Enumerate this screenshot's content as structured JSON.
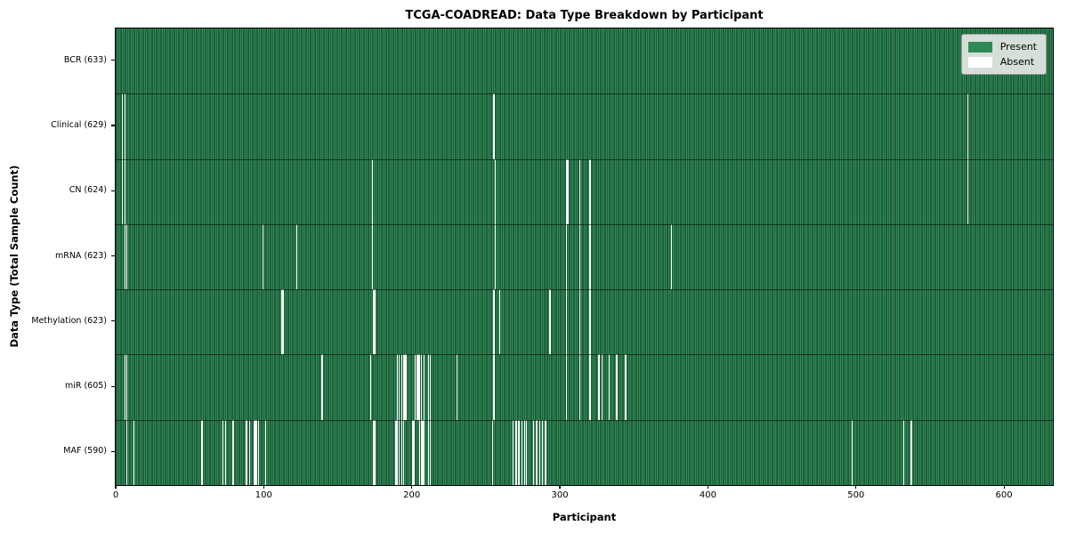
{
  "chart_data": {
    "type": "heatmap",
    "title": "TCGA-COADREAD: Data Type Breakdown by Participant",
    "xlabel": "Participant",
    "ylabel": "Data Type (Total Sample Count)",
    "x_ticks": [
      0,
      100,
      200,
      300,
      400,
      500,
      600
    ],
    "xlim": [
      0,
      633
    ],
    "n_participants": 633,
    "grid": false,
    "colors": {
      "present": "#2e8b57",
      "bar_edge": "#14301f",
      "absent": "#fbfbfb",
      "legend_bg": "#e5e8e5",
      "legend_border": "#9a9a9a"
    },
    "legend": {
      "position": "upper-right",
      "entries": [
        {
          "label": "Present",
          "color": "#2e8b57"
        },
        {
          "label": "Absent",
          "color": "#ffffff"
        }
      ]
    },
    "rows": [
      {
        "name": "BCR",
        "label": "BCR (633)",
        "present_count": 633,
        "absent_participants": []
      },
      {
        "name": "Clinical",
        "label": "Clinical (629)",
        "present_count": 629,
        "absent_participants": [
          4,
          6,
          255,
          575
        ]
      },
      {
        "name": "CN",
        "label": "CN (624)",
        "present_count": 624,
        "absent_participants": [
          4,
          6,
          173,
          256,
          304,
          305,
          313,
          320,
          575
        ]
      },
      {
        "name": "mRNA",
        "label": "mRNA (623)",
        "present_count": 623,
        "absent_participants": [
          6,
          7,
          99,
          122,
          173,
          256,
          304,
          313,
          320,
          375
        ]
      },
      {
        "name": "Methylation",
        "label": "Methylation (623)",
        "present_count": 623,
        "absent_participants": [
          112,
          113,
          174,
          175,
          255,
          259,
          293,
          304,
          313,
          320
        ]
      },
      {
        "name": "miR",
        "label": "miR (605)",
        "present_count": 605,
        "absent_participants": [
          6,
          7,
          139,
          172,
          190,
          191,
          193,
          194,
          195,
          196,
          202,
          203,
          204,
          205,
          206,
          208,
          211,
          212,
          230,
          255,
          304,
          313,
          320,
          326,
          328,
          333,
          338,
          344
        ]
      },
      {
        "name": "MAF",
        "label": "MAF (590)",
        "present_count": 590,
        "absent_participants": [
          7,
          12,
          58,
          72,
          74,
          79,
          88,
          90,
          93,
          94,
          95,
          96,
          101,
          174,
          175,
          189,
          190,
          191,
          193,
          194,
          200,
          201,
          205,
          206,
          207,
          208,
          211,
          212,
          254,
          268,
          270,
          272,
          274,
          276,
          277,
          282,
          284,
          286,
          288,
          290,
          497,
          532,
          537
        ]
      }
    ]
  }
}
